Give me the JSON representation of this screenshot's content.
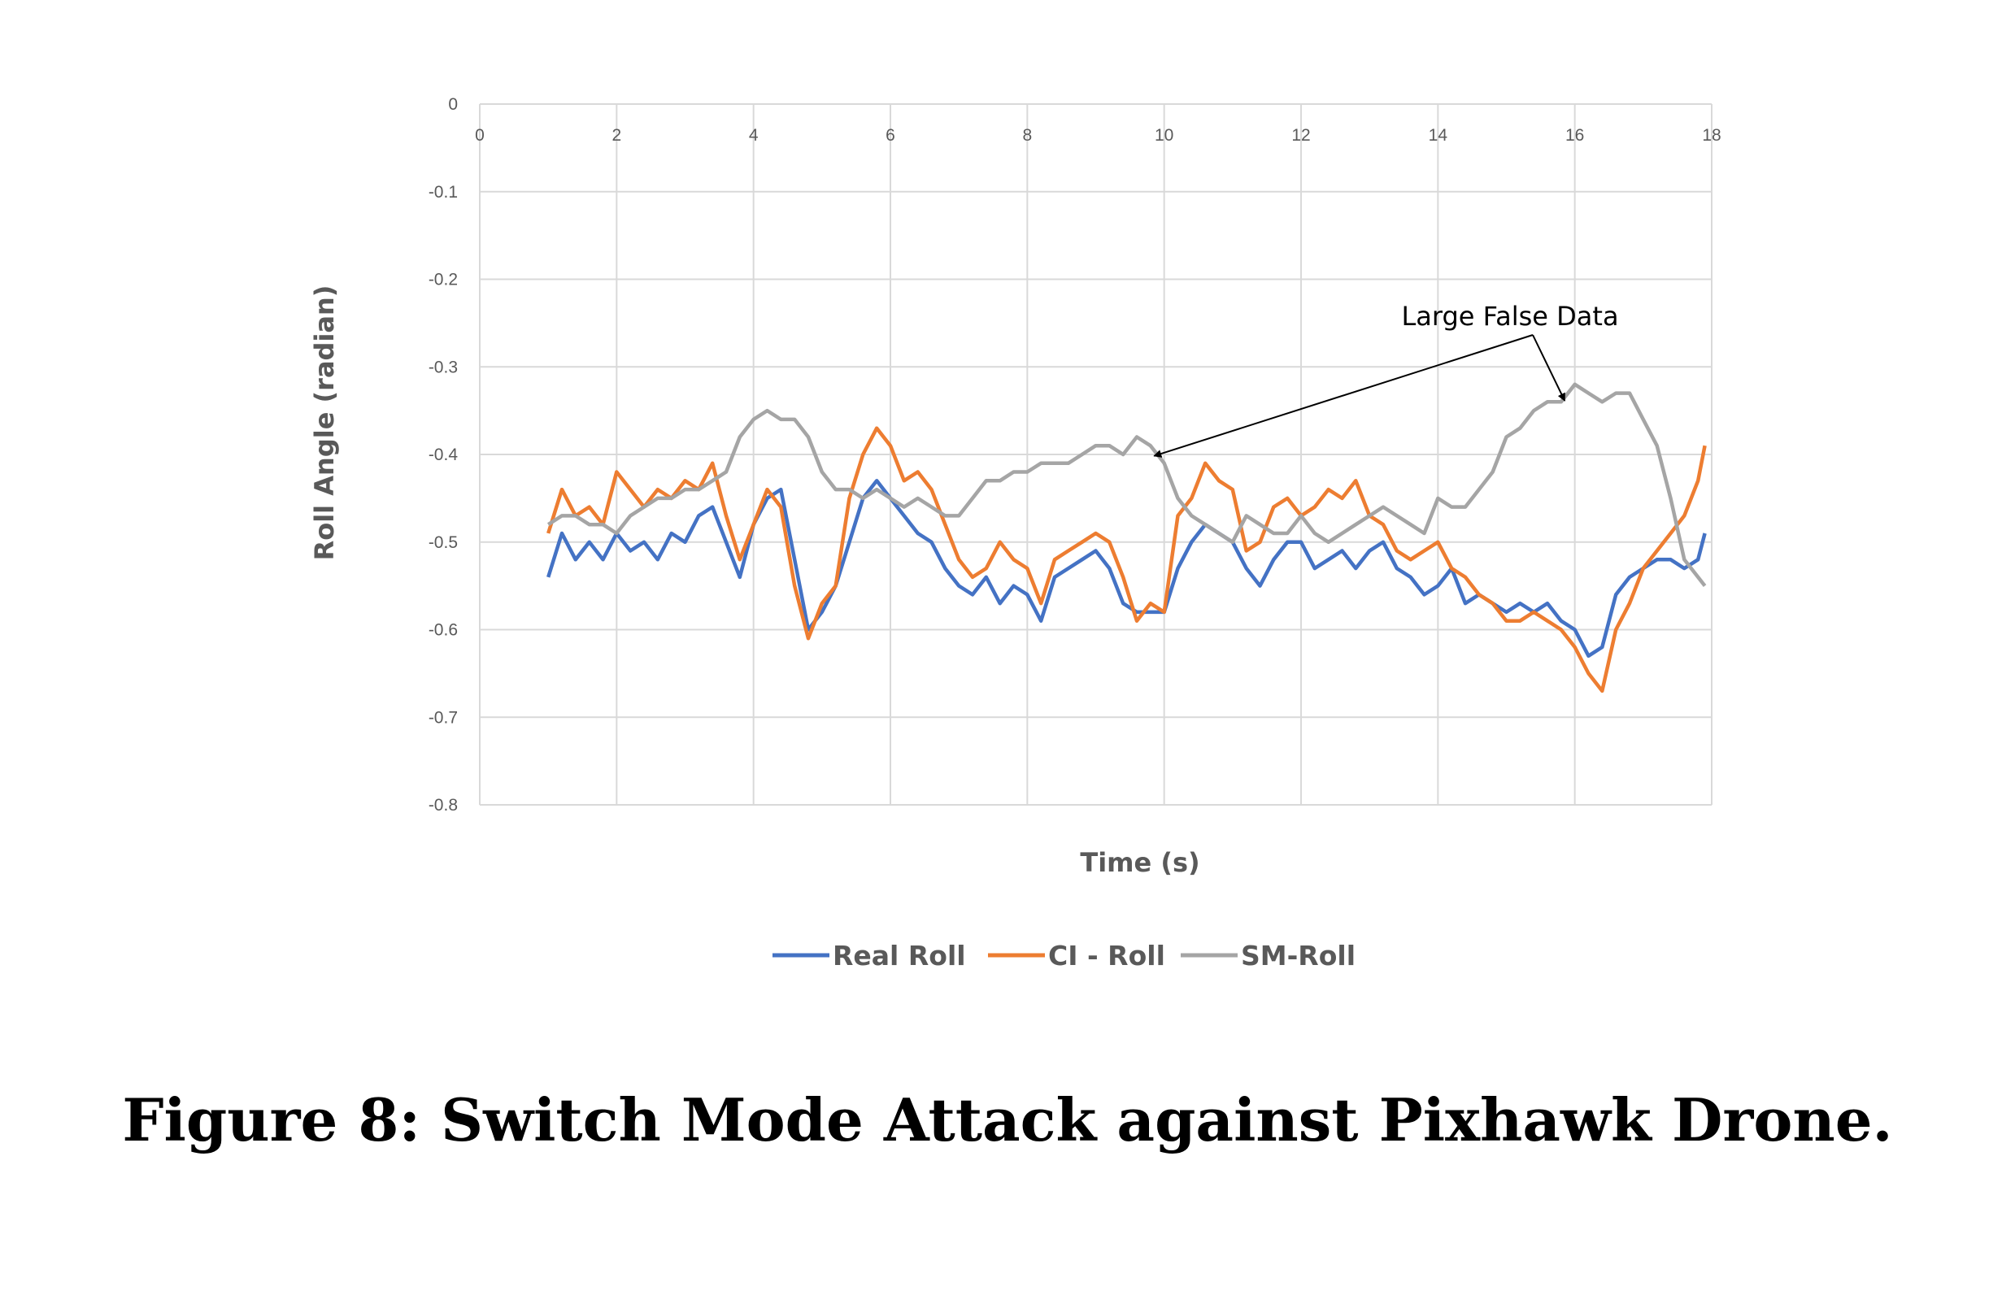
{
  "caption": "Figure 8: Switch Mode Attack against Pixhawk Drone.",
  "chart_data": {
    "type": "line",
    "xlabel": "Time (s)",
    "ylabel": "Roll Angle (radian)",
    "xlim": [
      0,
      18
    ],
    "ylim": [
      -0.8,
      0
    ],
    "xticks": [
      0,
      2,
      4,
      6,
      8,
      10,
      12,
      14,
      16,
      18
    ],
    "yticks": [
      0,
      -0.1,
      -0.2,
      -0.3,
      -0.4,
      -0.5,
      -0.6,
      -0.7,
      -0.8
    ],
    "x_tick_labels": [
      "0",
      "2",
      "4",
      "6",
      "8",
      "10",
      "12",
      "14",
      "16",
      "18"
    ],
    "y_tick_labels": [
      "0",
      "-0.1",
      "-0.2",
      "-0.3",
      "-0.4",
      "-0.5",
      "-0.6",
      "-0.7",
      "-0.8"
    ],
    "grid": true,
    "legend_position": "bottom",
    "annotation": {
      "text": "Large False Data",
      "targets": [
        [
          9.9,
          -0.385
        ],
        [
          15.9,
          -0.322
        ]
      ]
    },
    "series": [
      {
        "name": "Real Roll",
        "color": "#4472C4",
        "x": [
          1.0,
          1.2,
          1.4,
          1.6,
          1.8,
          2.0,
          2.2,
          2.4,
          2.6,
          2.8,
          3.0,
          3.2,
          3.4,
          3.6,
          3.8,
          4.0,
          4.2,
          4.4,
          4.6,
          4.8,
          5.0,
          5.2,
          5.4,
          5.6,
          5.8,
          6.0,
          6.2,
          6.4,
          6.6,
          6.8,
          7.0,
          7.2,
          7.4,
          7.6,
          7.8,
          8.0,
          8.2,
          8.4,
          8.6,
          8.8,
          9.0,
          9.2,
          9.4,
          9.6,
          9.8,
          10.0,
          10.2,
          10.4,
          10.6,
          10.8,
          11.0,
          11.2,
          11.4,
          11.6,
          11.8,
          12.0,
          12.2,
          12.4,
          12.6,
          12.8,
          13.0,
          13.2,
          13.4,
          13.6,
          13.8,
          14.0,
          14.2,
          14.4,
          14.6,
          14.8,
          15.0,
          15.2,
          15.4,
          15.6,
          15.8,
          16.0,
          16.2,
          16.4,
          16.6,
          16.8,
          17.0,
          17.2,
          17.4,
          17.6,
          17.8,
          17.9
        ],
        "y": [
          -0.54,
          -0.49,
          -0.52,
          -0.5,
          -0.52,
          -0.49,
          -0.51,
          -0.5,
          -0.52,
          -0.49,
          -0.5,
          -0.47,
          -0.46,
          -0.5,
          -0.54,
          -0.48,
          -0.45,
          -0.44,
          -0.52,
          -0.6,
          -0.58,
          -0.55,
          -0.5,
          -0.45,
          -0.43,
          -0.45,
          -0.47,
          -0.49,
          -0.5,
          -0.53,
          -0.55,
          -0.56,
          -0.54,
          -0.57,
          -0.55,
          -0.56,
          -0.59,
          -0.54,
          -0.53,
          -0.52,
          -0.51,
          -0.53,
          -0.57,
          -0.58,
          -0.58,
          -0.58,
          -0.53,
          -0.5,
          -0.48,
          -0.49,
          -0.5,
          -0.53,
          -0.55,
          -0.52,
          -0.5,
          -0.5,
          -0.53,
          -0.52,
          -0.51,
          -0.53,
          -0.51,
          -0.5,
          -0.53,
          -0.54,
          -0.56,
          -0.55,
          -0.53,
          -0.57,
          -0.56,
          -0.57,
          -0.58,
          -0.57,
          -0.58,
          -0.57,
          -0.59,
          -0.6,
          -0.63,
          -0.62,
          -0.56,
          -0.54,
          -0.53,
          -0.52,
          -0.52,
          -0.53,
          -0.52,
          -0.49
        ]
      },
      {
        "name": "CI - Roll",
        "color": "#ED7D31",
        "x": [
          1.0,
          1.2,
          1.4,
          1.6,
          1.8,
          2.0,
          2.2,
          2.4,
          2.6,
          2.8,
          3.0,
          3.2,
          3.4,
          3.6,
          3.8,
          4.0,
          4.2,
          4.4,
          4.6,
          4.8,
          5.0,
          5.2,
          5.4,
          5.6,
          5.8,
          6.0,
          6.2,
          6.4,
          6.6,
          6.8,
          7.0,
          7.2,
          7.4,
          7.6,
          7.8,
          8.0,
          8.2,
          8.4,
          8.6,
          8.8,
          9.0,
          9.2,
          9.4,
          9.6,
          9.8,
          10.0,
          10.2,
          10.4,
          10.6,
          10.8,
          11.0,
          11.2,
          11.4,
          11.6,
          11.8,
          12.0,
          12.2,
          12.4,
          12.6,
          12.8,
          13.0,
          13.2,
          13.4,
          13.6,
          13.8,
          14.0,
          14.2,
          14.4,
          14.6,
          14.8,
          15.0,
          15.2,
          15.4,
          15.6,
          15.8,
          16.0,
          16.2,
          16.4,
          16.6,
          16.8,
          17.0,
          17.2,
          17.4,
          17.6,
          17.8,
          17.9
        ],
        "y": [
          -0.49,
          -0.44,
          -0.47,
          -0.46,
          -0.48,
          -0.42,
          -0.44,
          -0.46,
          -0.44,
          -0.45,
          -0.43,
          -0.44,
          -0.41,
          -0.47,
          -0.52,
          -0.48,
          -0.44,
          -0.46,
          -0.55,
          -0.61,
          -0.57,
          -0.55,
          -0.45,
          -0.4,
          -0.37,
          -0.39,
          -0.43,
          -0.42,
          -0.44,
          -0.48,
          -0.52,
          -0.54,
          -0.53,
          -0.5,
          -0.52,
          -0.53,
          -0.57,
          -0.52,
          -0.51,
          -0.5,
          -0.49,
          -0.5,
          -0.54,
          -0.59,
          -0.57,
          -0.58,
          -0.47,
          -0.45,
          -0.41,
          -0.43,
          -0.44,
          -0.51,
          -0.5,
          -0.46,
          -0.45,
          -0.47,
          -0.46,
          -0.44,
          -0.45,
          -0.43,
          -0.47,
          -0.48,
          -0.51,
          -0.52,
          -0.51,
          -0.5,
          -0.53,
          -0.54,
          -0.56,
          -0.57,
          -0.59,
          -0.59,
          -0.58,
          -0.59,
          -0.6,
          -0.62,
          -0.65,
          -0.67,
          -0.6,
          -0.57,
          -0.53,
          -0.51,
          -0.49,
          -0.47,
          -0.43,
          -0.39
        ]
      },
      {
        "name": "SM-Roll",
        "color": "#A5A5A5",
        "x": [
          1.0,
          1.2,
          1.4,
          1.6,
          1.8,
          2.0,
          2.2,
          2.4,
          2.6,
          2.8,
          3.0,
          3.2,
          3.4,
          3.6,
          3.8,
          4.0,
          4.2,
          4.4,
          4.6,
          4.8,
          5.0,
          5.2,
          5.4,
          5.6,
          5.8,
          6.0,
          6.2,
          6.4,
          6.6,
          6.8,
          7.0,
          7.2,
          7.4,
          7.6,
          7.8,
          8.0,
          8.2,
          8.4,
          8.6,
          8.8,
          9.0,
          9.2,
          9.4,
          9.6,
          9.8,
          10.0,
          10.2,
          10.4,
          10.6,
          10.8,
          11.0,
          11.2,
          11.4,
          11.6,
          11.8,
          12.0,
          12.2,
          12.4,
          12.6,
          12.8,
          13.0,
          13.2,
          13.4,
          13.6,
          13.8,
          14.0,
          14.2,
          14.4,
          14.6,
          14.8,
          15.0,
          15.2,
          15.4,
          15.6,
          15.8,
          16.0,
          16.2,
          16.4,
          16.6,
          16.8,
          17.0,
          17.2,
          17.4,
          17.6,
          17.8,
          17.9
        ],
        "y": [
          -0.48,
          -0.47,
          -0.47,
          -0.48,
          -0.48,
          -0.49,
          -0.47,
          -0.46,
          -0.45,
          -0.45,
          -0.44,
          -0.44,
          -0.43,
          -0.42,
          -0.38,
          -0.36,
          -0.35,
          -0.36,
          -0.36,
          -0.38,
          -0.42,
          -0.44,
          -0.44,
          -0.45,
          -0.44,
          -0.45,
          -0.46,
          -0.45,
          -0.46,
          -0.47,
          -0.47,
          -0.45,
          -0.43,
          -0.43,
          -0.42,
          -0.42,
          -0.41,
          -0.41,
          -0.41,
          -0.4,
          -0.39,
          -0.39,
          -0.4,
          -0.38,
          -0.39,
          -0.41,
          -0.45,
          -0.47,
          -0.48,
          -0.49,
          -0.5,
          -0.47,
          -0.48,
          -0.49,
          -0.49,
          -0.47,
          -0.49,
          -0.5,
          -0.49,
          -0.48,
          -0.47,
          -0.46,
          -0.47,
          -0.48,
          -0.49,
          -0.45,
          -0.46,
          -0.46,
          -0.44,
          -0.42,
          -0.38,
          -0.37,
          -0.35,
          -0.34,
          -0.34,
          -0.32,
          -0.33,
          -0.34,
          -0.33,
          -0.33,
          -0.36,
          -0.39,
          -0.45,
          -0.52,
          -0.54,
          -0.55
        ]
      }
    ]
  }
}
